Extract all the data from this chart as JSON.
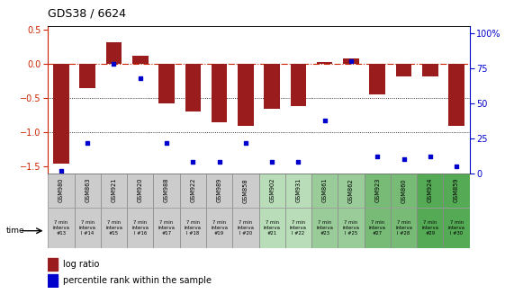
{
  "title": "GDS38 / 6624",
  "samples": [
    "GSM980",
    "GSM863",
    "GSM921",
    "GSM920",
    "GSM988",
    "GSM922",
    "GSM989",
    "GSM858",
    "GSM902",
    "GSM931",
    "GSM861",
    "GSM862",
    "GSM923",
    "GSM860",
    "GSM924",
    "GSM859"
  ],
  "interval_labels": [
    "#13",
    "l #14",
    "#15",
    "l #16",
    "#17",
    "l #18",
    "#19",
    "l #20",
    "#21",
    "l #22",
    "#23",
    "l #25",
    "#27",
    "l #28",
    "#29",
    "l #30"
  ],
  "log_ratio": [
    -1.45,
    -0.35,
    0.32,
    0.12,
    -0.57,
    -0.7,
    -0.85,
    -0.9,
    -0.65,
    -0.62,
    0.03,
    0.08,
    -0.45,
    -0.18,
    -0.18,
    -0.9
  ],
  "percentile_rank": [
    2,
    22,
    78,
    68,
    22,
    8,
    8,
    22,
    8,
    8,
    38,
    80,
    12,
    10,
    12,
    5
  ],
  "bar_color": "#9B1C1C",
  "dot_color": "#0000CC",
  "ylim_left": [
    -1.6,
    0.55
  ],
  "ylim_right": [
    0,
    105
  ],
  "yticks_left": [
    -1.5,
    -1.0,
    -0.5,
    0.0,
    0.5
  ],
  "yticks_right": [
    0,
    25,
    50,
    75,
    100
  ],
  "ylabel_right_labels": [
    "0",
    "25",
    "50",
    "75",
    "100%"
  ],
  "col_bg_colors": [
    "#cccccc",
    "#cccccc",
    "#cccccc",
    "#cccccc",
    "#cccccc",
    "#cccccc",
    "#cccccc",
    "#cccccc",
    "#b8ddb8",
    "#b8ddb8",
    "#99cc99",
    "#99cc99",
    "#77bb77",
    "#77bb77",
    "#55aa55",
    "#55aa55"
  ]
}
